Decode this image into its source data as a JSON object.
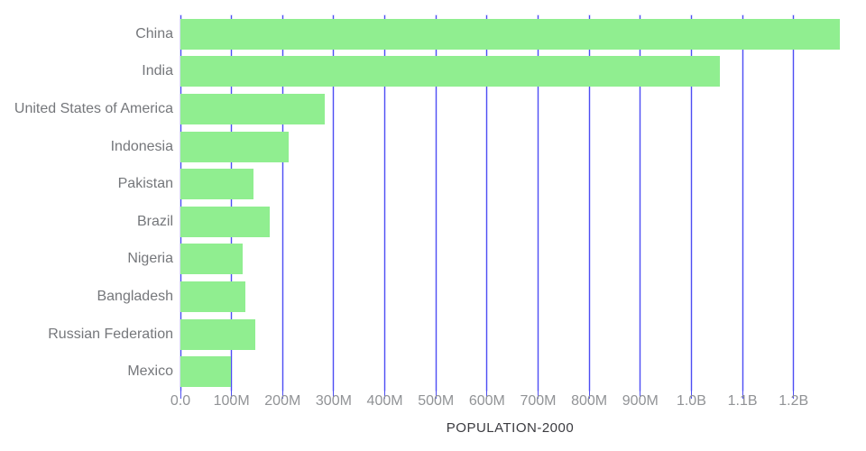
{
  "chart_data": {
    "type": "bar",
    "orientation": "horizontal",
    "title": "",
    "xlabel": "POPULATION-2000",
    "ylabel": "",
    "categories": [
      "China",
      "India",
      "United States of America",
      "Indonesia",
      "Pakistan",
      "Brazil",
      "Nigeria",
      "Bangladesh",
      "Russian Federation",
      "Mexico"
    ],
    "values": [
      1290550765,
      1056575549,
      281710909,
      211513823,
      142343578,
      174790340,
      122283850,
      127657854,
      146404903,
      98899845
    ],
    "xlim": [
      0,
      1290550765
    ],
    "x_ticks": [
      {
        "value": 0,
        "label": "0.0"
      },
      {
        "value": 100000000,
        "label": "100M"
      },
      {
        "value": 200000000,
        "label": "200M"
      },
      {
        "value": 300000000,
        "label": "300M"
      },
      {
        "value": 400000000,
        "label": "400M"
      },
      {
        "value": 500000000,
        "label": "500M"
      },
      {
        "value": 600000000,
        "label": "600M"
      },
      {
        "value": 700000000,
        "label": "700M"
      },
      {
        "value": 800000000,
        "label": "800M"
      },
      {
        "value": 900000000,
        "label": "900M"
      },
      {
        "value": 1000000000,
        "label": "1.0B"
      },
      {
        "value": 1100000000,
        "label": "1.1B"
      },
      {
        "value": 1200000000,
        "label": "1.2B"
      }
    ],
    "grid": true,
    "legend": false,
    "colors": {
      "bar": "#90ee90",
      "grid": "#4d4df2",
      "category_label": "#75777b",
      "tick_label": "#919396",
      "axis_title": "#3b3b40",
      "background": "#ffffff"
    }
  }
}
